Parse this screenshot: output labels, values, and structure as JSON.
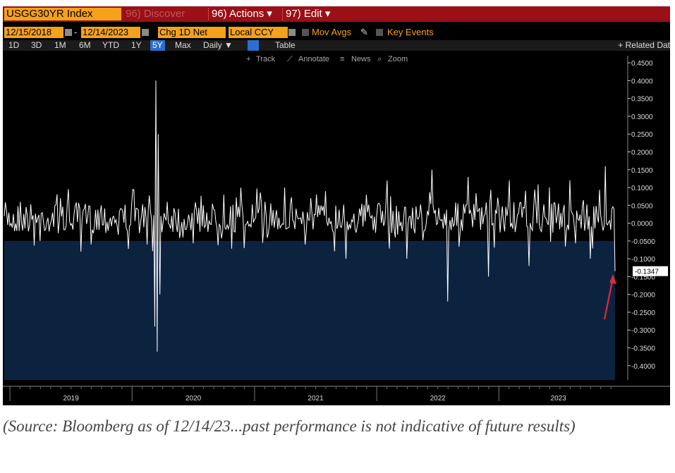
{
  "header": {
    "ticker": "USGG30YR Index",
    "discover_label": "96) Discover",
    "actions_label": "96) Actions ▾",
    "edit_label": "97) Edit ▾"
  },
  "controls": {
    "start_date": "12/15/2018",
    "end_date": "12/14/2023",
    "field": "Chg 1D Net",
    "currency": "Local CCY",
    "mov_avgs": "Mov Avgs",
    "key_events": "Key Events"
  },
  "periods": [
    "1D",
    "3D",
    "1M",
    "6M",
    "YTD",
    "1Y",
    "5Y",
    "Max"
  ],
  "selected_period": "5Y",
  "frequency": "Daily ▼",
  "table_label": "Table",
  "related_label": "+ Related Dat",
  "tools": {
    "track": "Track",
    "annotate": "Annotate",
    "news": "News",
    "zoom": "Zoom"
  },
  "colors": {
    "background": "#000000",
    "fill": "#0c2340",
    "line": "#ffffff",
    "toolbar": "#9b0f17",
    "accent": "#f6a11a",
    "arrow": "#e02a3a"
  },
  "chart_data": {
    "type": "area",
    "title": "",
    "xlabel": "",
    "ylabel": "",
    "ylim": [
      -0.44,
      0.47
    ],
    "y_ticks": [
      "0.4500",
      "0.4000",
      "0.3500",
      "0.3000",
      "0.2500",
      "0.2000",
      "0.1500",
      "0.1000",
      "0.0500",
      "0.0000",
      "-0.0500",
      "-0.1000",
      "-0.1500",
      "-0.2000",
      "-0.2500",
      "-0.3000",
      "-0.3500",
      "-0.4000"
    ],
    "x_ticks": [
      "2019",
      "2020",
      "2021",
      "2022",
      "2023"
    ],
    "last_value_label": "-0.1347",
    "series": [
      {
        "x": [
          "2018-12-15",
          "2019-02-01",
          "2019-04-01",
          "2019-06-01",
          "2019-08-01",
          "2019-10-01",
          "2019-12-01",
          "2020-02-15",
          "2020-03-09",
          "2020-03-12",
          "2020-03-16",
          "2020-03-19",
          "2020-03-24",
          "2020-04-15",
          "2020-06-01",
          "2020-08-01",
          "2020-10-01",
          "2020-12-01",
          "2021-02-01",
          "2021-04-01",
          "2021-06-01",
          "2021-08-01",
          "2021-10-01",
          "2021-12-01",
          "2022-02-01",
          "2022-04-01",
          "2022-06-15",
          "2022-08-01",
          "2022-10-01",
          "2022-12-01",
          "2023-02-01",
          "2023-04-01",
          "2023-06-01",
          "2023-08-01",
          "2023-10-01",
          "2023-11-15",
          "2023-12-14"
        ],
        "y": [
          0.02,
          0.06,
          -0.05,
          0.07,
          -0.08,
          0.05,
          0.04,
          -0.06,
          -0.29,
          0.4,
          -0.36,
          0.25,
          -0.2,
          0.06,
          -0.04,
          0.05,
          0.08,
          -0.07,
          0.06,
          0.1,
          -0.06,
          0.09,
          -0.1,
          0.08,
          0.12,
          -0.1,
          0.15,
          -0.22,
          0.13,
          -0.15,
          0.12,
          -0.12,
          0.1,
          0.12,
          -0.1,
          0.16,
          -0.1347
        ]
      }
    ]
  },
  "caption": "(Source: Bloomberg as of 12/14/23...past performance is not indicative of future results)"
}
